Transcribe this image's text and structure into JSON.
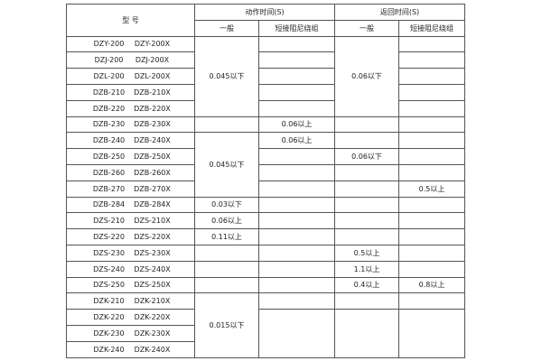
{
  "header": {
    "model": "型 号",
    "action_time": "动作时间(S)",
    "return_time": "返回时间(S)",
    "general": "一般",
    "short_damping": "短接阻尼绕组"
  },
  "rows": [
    {
      "a": "DZY-200",
      "b": "DZY-200X",
      "cells": [
        {
          "t": "0.045以下",
          "rs": 5
        },
        {
          "t": ""
        },
        {
          "t": "0.06以下",
          "rs": 5
        },
        {
          "t": ""
        }
      ]
    },
    {
      "a": "DZJ-200",
      "b": "DZJ-200X",
      "cells": [
        null,
        {
          "t": ""
        },
        null,
        {
          "t": ""
        }
      ]
    },
    {
      "a": "DZL-200",
      "b": "DZL-200X",
      "cells": [
        null,
        {
          "t": ""
        },
        null,
        {
          "t": ""
        }
      ]
    },
    {
      "a": "DZB-210",
      "b": "DZB-210X",
      "cells": [
        null,
        {
          "t": ""
        },
        null,
        {
          "t": ""
        }
      ]
    },
    {
      "a": "DZB-220",
      "b": "DZB-220X",
      "cells": [
        null,
        {
          "t": ""
        },
        null,
        {
          "t": ""
        }
      ]
    },
    {
      "a": "DZB-230",
      "b": "DZB-230X",
      "cells": [
        {
          "t": ""
        },
        {
          "t": "0.06以上"
        },
        {
          "t": ""
        },
        {
          "t": ""
        }
      ]
    },
    {
      "a": "DZB-240",
      "b": "DZB-240X",
      "cells": [
        {
          "t": "0.045以下",
          "rs": 4
        },
        {
          "t": "0.06以上"
        },
        {
          "t": ""
        },
        {
          "t": ""
        }
      ]
    },
    {
      "a": "DZB-250",
      "b": "DZB-250X",
      "cells": [
        null,
        {
          "t": ""
        },
        {
          "t": "0.06以下"
        },
        {
          "t": ""
        }
      ]
    },
    {
      "a": "DZB-260",
      "b": "DZB-260X",
      "cells": [
        null,
        {
          "t": ""
        },
        {
          "t": ""
        },
        {
          "t": ""
        }
      ]
    },
    {
      "a": "DZB-270",
      "b": "DZB-270X",
      "cells": [
        null,
        {
          "t": ""
        },
        {
          "t": ""
        },
        {
          "t": "0.5以上"
        }
      ]
    },
    {
      "a": "DZB-284",
      "b": "DZB-284X",
      "cells": [
        {
          "t": "0.03以下"
        },
        {
          "t": ""
        },
        {
          "t": ""
        },
        {
          "t": ""
        }
      ]
    },
    {
      "a": "DZS-210",
      "b": "DZS-210X",
      "cells": [
        {
          "t": "0.06以上"
        },
        {
          "t": ""
        },
        {
          "t": ""
        },
        {
          "t": ""
        }
      ]
    },
    {
      "a": "DZS-220",
      "b": "DZS-220X",
      "cells": [
        {
          "t": "0.11以上"
        },
        {
          "t": ""
        },
        {
          "t": ""
        },
        {
          "t": ""
        }
      ]
    },
    {
      "a": "DZS-230",
      "b": "DZS-230X",
      "cells": [
        {
          "t": ""
        },
        {
          "t": ""
        },
        {
          "t": "0.5以上"
        },
        {
          "t": ""
        }
      ]
    },
    {
      "a": "DZS-240",
      "b": "DZS-240X",
      "cells": [
        {
          "t": ""
        },
        {
          "t": ""
        },
        {
          "t": "1.1以上"
        },
        {
          "t": ""
        }
      ]
    },
    {
      "a": "DZS-250",
      "b": "DZS-250X",
      "cells": [
        {
          "t": ""
        },
        {
          "t": ""
        },
        {
          "t": "0.4以上"
        },
        {
          "t": "0.8以上"
        }
      ]
    },
    {
      "a": "DZK-210",
      "b": "DZK-210X",
      "cells": [
        {
          "t": "0.015以下",
          "rs": 4
        },
        {
          "t": ""
        },
        {
          "t": ""
        },
        {
          "t": ""
        }
      ]
    },
    {
      "a": "DZK-220",
      "b": "DZK-220X",
      "cells": [
        null,
        {
          "t": "",
          "rs": 3
        },
        {
          "t": "",
          "rs": 3
        },
        {
          "t": "",
          "rs": 3
        }
      ]
    },
    {
      "a": "DZK-230",
      "b": "DZK-230X",
      "cells": [
        null,
        null,
        null,
        null
      ]
    },
    {
      "a": "DZK-240",
      "b": "DZK-240X",
      "cells": [
        null,
        null,
        null,
        null
      ]
    }
  ]
}
